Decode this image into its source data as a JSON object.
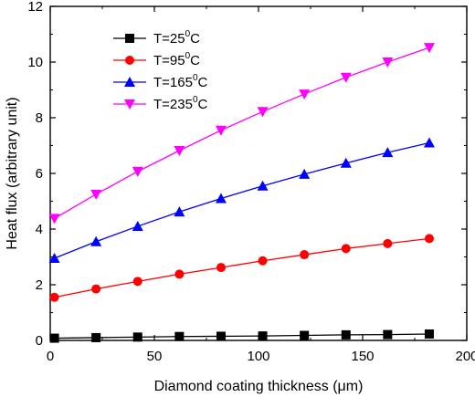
{
  "chart_data": {
    "type": "line",
    "xlabel": "Diamond coating thickness (μm)",
    "ylabel": "Heat flux (arbitrary unit)",
    "xlim": [
      0,
      200
    ],
    "ylim": [
      0,
      12
    ],
    "x_ticks": [
      "0",
      "50",
      "100",
      "150",
      "200"
    ],
    "y_ticks": [
      "0",
      "2",
      "4",
      "6",
      "8",
      "10",
      "12"
    ],
    "grid": false,
    "legend_position": "top-left",
    "x": [
      2,
      22,
      42,
      62,
      82,
      102,
      122,
      142,
      162,
      182
    ],
    "series": [
      {
        "name": "T=25⁰C",
        "legend_main": "T=25",
        "legend_sup": "0",
        "legend_tail": "C",
        "color": "#000000",
        "marker": "square",
        "values": [
          0.08,
          0.1,
          0.12,
          0.14,
          0.15,
          0.16,
          0.18,
          0.2,
          0.21,
          0.23
        ]
      },
      {
        "name": "T=95⁰C",
        "legend_main": "T=95",
        "legend_sup": "0",
        "legend_tail": "C",
        "color": "#ff0000",
        "marker": "circle",
        "values": [
          1.55,
          1.85,
          2.12,
          2.38,
          2.62,
          2.86,
          3.08,
          3.3,
          3.48,
          3.66
        ]
      },
      {
        "name": "T=165⁰C",
        "legend_main": "T=165",
        "legend_sup": "0",
        "legend_tail": "C",
        "color": "#0000ff",
        "marker": "triangle-up",
        "values": [
          2.95,
          3.55,
          4.1,
          4.62,
          5.1,
          5.55,
          5.97,
          6.37,
          6.75,
          7.1
        ]
      },
      {
        "name": "T=235⁰C",
        "legend_main": "T=235",
        "legend_sup": "0",
        "legend_tail": "C",
        "color": "#ff00ff",
        "marker": "triangle-down",
        "values": [
          4.38,
          5.25,
          6.07,
          6.82,
          7.55,
          8.22,
          8.85,
          9.45,
          10.0,
          10.52
        ]
      }
    ]
  }
}
